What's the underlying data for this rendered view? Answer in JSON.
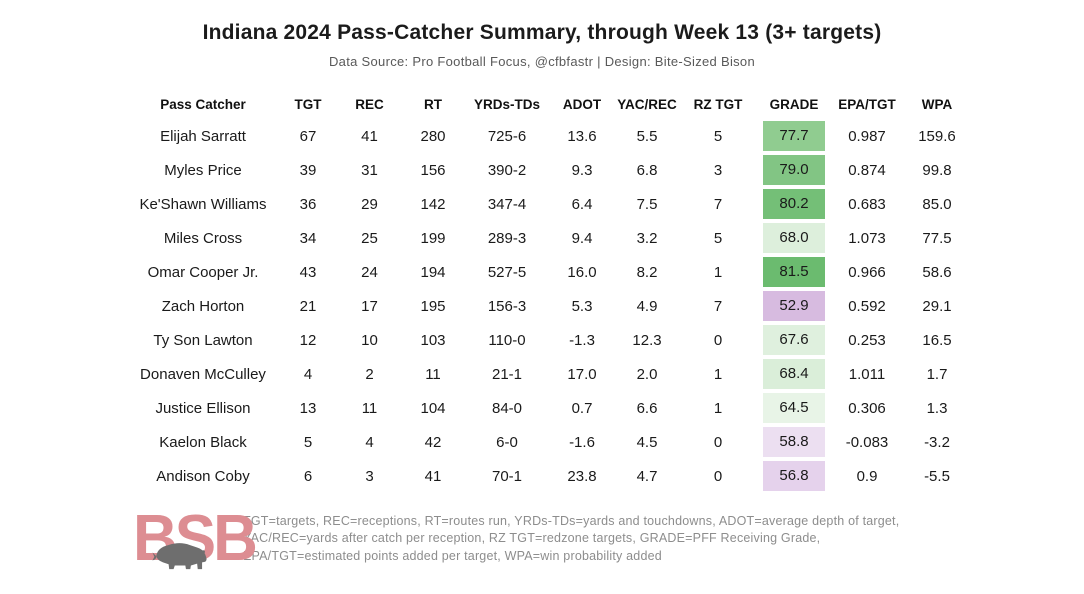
{
  "chart_data": {
    "type": "table",
    "title": "Indiana 2024 Pass-Catcher Summary, through Week 13 (3+ targets)",
    "subtitle": "Data Source: Pro Football Focus, @cfbfastr | Design: Bite-Sized Bison",
    "grade_color_scale_note": "GRADE cell fill: green = higher PFF grade, purple = lower PFF grade",
    "columns": [
      {
        "key": "name",
        "label": "Pass Catcher"
      },
      {
        "key": "tgt",
        "label": "TGT"
      },
      {
        "key": "rec",
        "label": "REC"
      },
      {
        "key": "rt",
        "label": "RT"
      },
      {
        "key": "yrds_tds",
        "label": "YRDs-TDs"
      },
      {
        "key": "adot",
        "label": "ADOT"
      },
      {
        "key": "yac_rec",
        "label": "YAC/REC"
      },
      {
        "key": "rz_tgt",
        "label": "RZ TGT"
      },
      {
        "key": "grade",
        "label": "GRADE"
      },
      {
        "key": "epa_tgt",
        "label": "EPA/TGT"
      },
      {
        "key": "wpa",
        "label": "WPA"
      }
    ],
    "rows": [
      {
        "name": "Elijah Sarratt",
        "tgt": "67",
        "rec": "41",
        "rt": "280",
        "yrds_tds": "725-6",
        "adot": "13.6",
        "yac_rec": "5.5",
        "rz_tgt": "5",
        "grade": "77.7",
        "grade_color": "#90cc90",
        "epa_tgt": "0.987",
        "wpa": "159.6"
      },
      {
        "name": "Myles Price",
        "tgt": "39",
        "rec": "31",
        "rt": "156",
        "yrds_tds": "390-2",
        "adot": "9.3",
        "yac_rec": "6.8",
        "rz_tgt": "3",
        "grade": "79.0",
        "grade_color": "#82c584",
        "epa_tgt": "0.874",
        "wpa": "99.8"
      },
      {
        "name": "Ke'Shawn Williams",
        "tgt": "36",
        "rec": "29",
        "rt": "142",
        "yrds_tds": "347-4",
        "adot": "6.4",
        "yac_rec": "7.5",
        "rz_tgt": "7",
        "grade": "80.2",
        "grade_color": "#74bf77",
        "epa_tgt": "0.683",
        "wpa": "85.0"
      },
      {
        "name": "Miles Cross",
        "tgt": "34",
        "rec": "25",
        "rt": "199",
        "yrds_tds": "289-3",
        "adot": "9.4",
        "yac_rec": "3.2",
        "rz_tgt": "5",
        "grade": "68.0",
        "grade_color": "#ddefdc",
        "epa_tgt": "1.073",
        "wpa": "77.5"
      },
      {
        "name": "Omar Cooper Jr.",
        "tgt": "43",
        "rec": "24",
        "rt": "194",
        "yrds_tds": "527-5",
        "adot": "16.0",
        "yac_rec": "8.2",
        "rz_tgt": "1",
        "grade": "81.5",
        "grade_color": "#6bbb6f",
        "epa_tgt": "0.966",
        "wpa": "58.6"
      },
      {
        "name": "Zach Horton",
        "tgt": "21",
        "rec": "17",
        "rt": "195",
        "yrds_tds": "156-3",
        "adot": "5.3",
        "yac_rec": "4.9",
        "rz_tgt": "7",
        "grade": "52.9",
        "grade_color": "#d7bbe0",
        "epa_tgt": "0.592",
        "wpa": "29.1"
      },
      {
        "name": "Ty Son Lawton",
        "tgt": "12",
        "rec": "10",
        "rt": "103",
        "yrds_tds": "110-0",
        "adot": "-1.3",
        "yac_rec": "12.3",
        "rz_tgt": "0",
        "grade": "67.6",
        "grade_color": "#dff0de",
        "epa_tgt": "0.253",
        "wpa": "16.5"
      },
      {
        "name": "Donaven McCulley",
        "tgt": "4",
        "rec": "2",
        "rt": "11",
        "yrds_tds": "21-1",
        "adot": "17.0",
        "yac_rec": "2.0",
        "rz_tgt": "1",
        "grade": "68.4",
        "grade_color": "#daeed9",
        "epa_tgt": "1.011",
        "wpa": "1.7"
      },
      {
        "name": "Justice Ellison",
        "tgt": "13",
        "rec": "11",
        "rt": "104",
        "yrds_tds": "84-0",
        "adot": "0.7",
        "yac_rec": "6.6",
        "rz_tgt": "1",
        "grade": "64.5",
        "grade_color": "#e8f4e7",
        "epa_tgt": "0.306",
        "wpa": "1.3"
      },
      {
        "name": "Kaelon Black",
        "tgt": "5",
        "rec": "4",
        "rt": "42",
        "yrds_tds": "6-0",
        "adot": "-1.6",
        "yac_rec": "4.5",
        "rz_tgt": "0",
        "grade": "58.8",
        "grade_color": "#ecdff1",
        "epa_tgt": "-0.083",
        "wpa": "-3.2"
      },
      {
        "name": "Andison Coby",
        "tgt": "6",
        "rec": "3",
        "rt": "41",
        "yrds_tds": "70-1",
        "adot": "23.8",
        "yac_rec": "4.7",
        "rz_tgt": "0",
        "grade": "56.8",
        "grade_color": "#e5d2ec",
        "epa_tgt": "0.9",
        "wpa": "-5.5"
      }
    ]
  },
  "footer": {
    "logo_text": "BSB",
    "logo_color": "#dd8d92",
    "bison_icon_color": "#6e6e6e",
    "note_lines": [
      "TGT=targets, REC=receptions, RT=routes run, YRDs-TDs=yards and touchdowns, ADOT=average depth of target,",
      "YAC/REC=yards after catch per reception, RZ TGT=redzone targets, GRADE=PFF Receiving Grade,",
      "EPA/TGT=estimated points added per target, WPA=win probability added"
    ]
  }
}
